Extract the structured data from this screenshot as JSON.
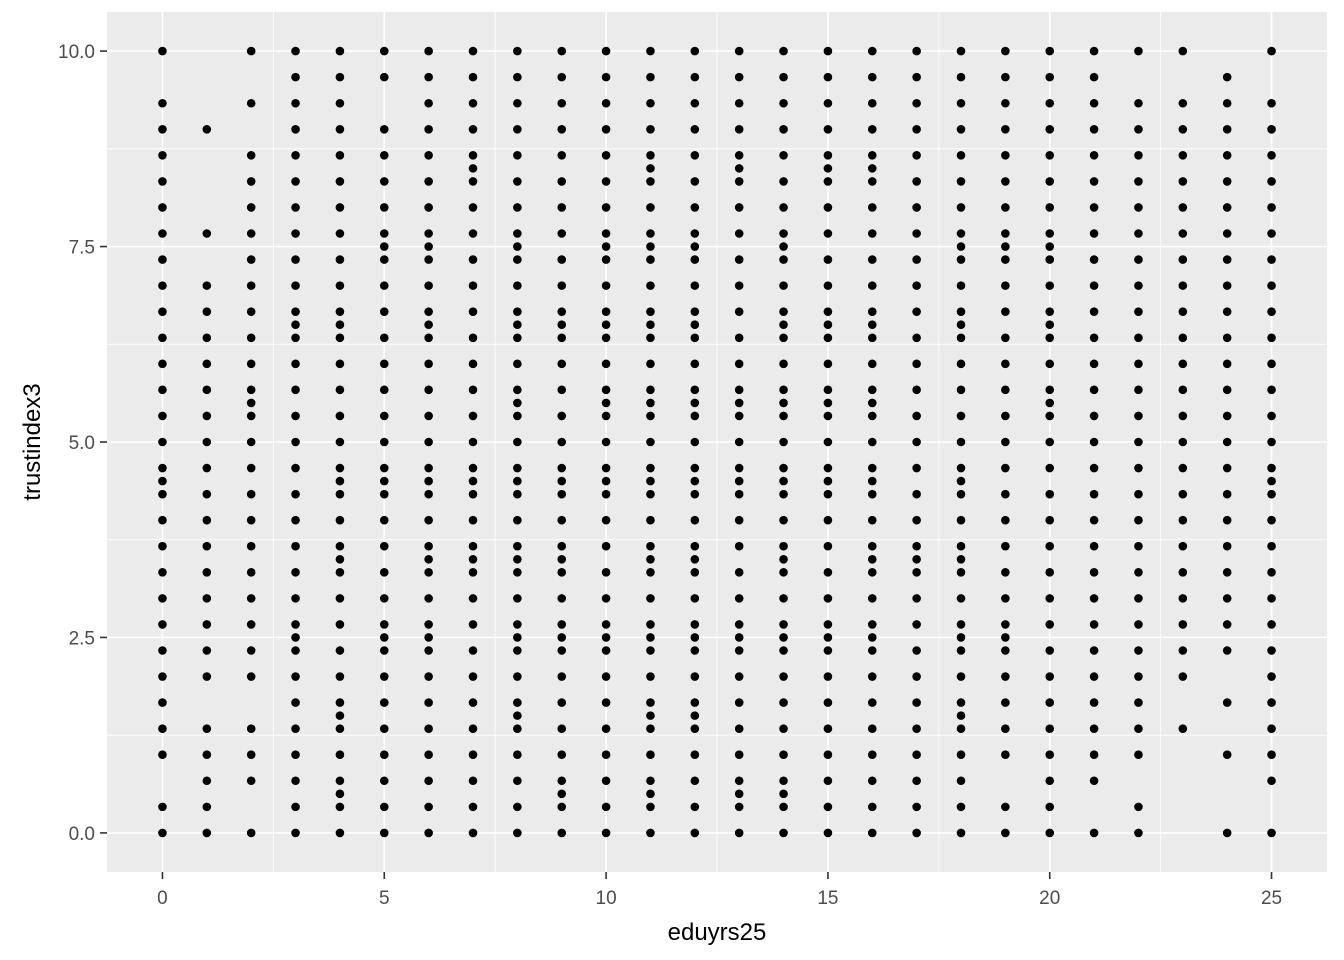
{
  "chart_data": {
    "type": "scatter",
    "title": "",
    "xlabel": "eduyrs25",
    "ylabel": "trustindex3",
    "xlim": [
      -1.25,
      26.25
    ],
    "ylim": [
      -0.5,
      10.5
    ],
    "x_ticks": [
      0,
      5,
      10,
      15,
      20,
      25
    ],
    "x_tick_labels": [
      "0",
      "5",
      "10",
      "15",
      "20",
      "25"
    ],
    "y_ticks": [
      0,
      2.5,
      5,
      7.5,
      10
    ],
    "y_tick_labels": [
      "0.0",
      "2.5",
      "5.0",
      "7.5",
      "10.0"
    ],
    "grid": true,
    "panel_background": "#ebebeb",
    "grid_color": "#ffffff",
    "point_color": "#000000",
    "legend": "none",
    "columns": [
      {
        "x": 0,
        "y": [
          0,
          0.333,
          1,
          1.333,
          1.667,
          2,
          2.333,
          2.667,
          3,
          3.333,
          3.667,
          4,
          4.333,
          4.5,
          4.667,
          5,
          5.333,
          5.667,
          6,
          6.333,
          6.667,
          7,
          7.333,
          7.667,
          8,
          8.333,
          8.667,
          9,
          9.333,
          10
        ]
      },
      {
        "x": 1,
        "y": [
          0,
          0.333,
          0.667,
          1,
          1.333,
          2,
          2.333,
          2.667,
          3,
          3.333,
          3.667,
          4,
          4.333,
          4.667,
          5,
          5.333,
          5.667,
          6,
          6.333,
          6.667,
          7,
          7.667,
          9
        ]
      },
      {
        "x": 2,
        "y": [
          0,
          0.667,
          1,
          1.333,
          2,
          2.333,
          2.667,
          3,
          3.333,
          3.667,
          4,
          4.333,
          4.667,
          5,
          5.333,
          5.5,
          5.667,
          6,
          6.333,
          6.667,
          7,
          7.333,
          7.667,
          8,
          8.333,
          8.667,
          9.333,
          10
        ]
      },
      {
        "x": 3,
        "y": [
          0,
          0.333,
          0.667,
          1,
          1.333,
          1.667,
          2,
          2.333,
          2.5,
          2.667,
          3,
          3.333,
          3.667,
          4,
          4.333,
          4.667,
          5,
          5.333,
          5.667,
          6,
          6.333,
          6.5,
          6.667,
          7,
          7.333,
          7.667,
          8,
          8.333,
          8.667,
          9,
          9.333,
          9.667,
          10
        ]
      },
      {
        "x": 4,
        "y": [
          0,
          0.333,
          0.5,
          0.667,
          1,
          1.333,
          1.5,
          1.667,
          2,
          2.333,
          2.667,
          3,
          3.333,
          3.5,
          3.667,
          4,
          4.333,
          4.5,
          4.667,
          5,
          5.333,
          5.667,
          6,
          6.333,
          6.5,
          6.667,
          7,
          7.333,
          7.667,
          8,
          8.333,
          8.667,
          9,
          9.333,
          9.667,
          10
        ]
      },
      {
        "x": 5,
        "y": [
          0,
          0.333,
          0.667,
          1,
          1.333,
          1.667,
          2,
          2.333,
          2.5,
          2.667,
          3,
          3.333,
          3.667,
          4,
          4.333,
          4.5,
          4.667,
          5,
          5.333,
          5.667,
          6,
          6.333,
          6.667,
          7,
          7.333,
          7.5,
          7.667,
          8,
          8.333,
          8.667,
          9,
          9.667,
          10
        ]
      },
      {
        "x": 6,
        "y": [
          0,
          0.333,
          0.667,
          1,
          1.333,
          1.667,
          2,
          2.333,
          2.5,
          2.667,
          3,
          3.333,
          3.5,
          3.667,
          4,
          4.333,
          4.5,
          4.667,
          5,
          5.333,
          5.667,
          6,
          6.333,
          6.5,
          6.667,
          7,
          7.333,
          7.5,
          7.667,
          8,
          8.333,
          8.667,
          9,
          9.333,
          9.667,
          10
        ]
      },
      {
        "x": 7,
        "y": [
          0,
          0.333,
          0.667,
          1,
          1.333,
          1.667,
          2,
          2.333,
          2.667,
          3,
          3.333,
          3.5,
          3.667,
          4,
          4.333,
          4.5,
          4.667,
          5,
          5.333,
          5.667,
          6,
          6.333,
          6.667,
          7,
          7.333,
          7.667,
          8,
          8.333,
          8.5,
          8.667,
          9,
          9.333,
          9.667,
          10
        ]
      },
      {
        "x": 8,
        "y": [
          0,
          0.333,
          0.667,
          1,
          1.333,
          1.5,
          1.667,
          2,
          2.333,
          2.5,
          2.667,
          3,
          3.333,
          3.5,
          3.667,
          4,
          4.333,
          4.5,
          4.667,
          5,
          5.333,
          5.5,
          5.667,
          6,
          6.333,
          6.5,
          6.667,
          7,
          7.333,
          7.5,
          7.667,
          8,
          8.333,
          8.667,
          9,
          9.333,
          9.667,
          10
        ]
      },
      {
        "x": 9,
        "y": [
          0,
          0.333,
          0.5,
          0.667,
          1,
          1.333,
          1.667,
          2,
          2.333,
          2.5,
          2.667,
          3,
          3.333,
          3.5,
          3.667,
          4,
          4.333,
          4.5,
          4.667,
          5,
          5.333,
          5.667,
          6,
          6.333,
          6.5,
          6.667,
          7,
          7.333,
          7.667,
          8,
          8.333,
          8.667,
          9,
          9.333,
          9.667,
          10
        ]
      },
      {
        "x": 10,
        "y": [
          0,
          0.333,
          0.667,
          1,
          1.333,
          1.667,
          2,
          2.333,
          2.5,
          2.667,
          3,
          3.333,
          3.667,
          4,
          4.333,
          4.5,
          4.667,
          5,
          5.333,
          5.5,
          5.667,
          6,
          6.333,
          6.5,
          6.667,
          7,
          7.333,
          7.5,
          7.667,
          8,
          8.333,
          8.667,
          9,
          9.333,
          9.667,
          10
        ]
      },
      {
        "x": 11,
        "y": [
          0,
          0.333,
          0.5,
          0.667,
          1,
          1.333,
          1.5,
          1.667,
          2,
          2.333,
          2.5,
          2.667,
          3,
          3.333,
          3.5,
          3.667,
          4,
          4.333,
          4.5,
          4.667,
          5,
          5.333,
          5.5,
          5.667,
          6,
          6.333,
          6.5,
          6.667,
          7,
          7.333,
          7.5,
          7.667,
          8,
          8.333,
          8.5,
          8.667,
          9,
          9.333,
          9.667,
          10
        ]
      },
      {
        "x": 12,
        "y": [
          0,
          0.333,
          0.667,
          1,
          1.333,
          1.5,
          1.667,
          2,
          2.333,
          2.5,
          2.667,
          3,
          3.333,
          3.5,
          3.667,
          4,
          4.333,
          4.5,
          4.667,
          5,
          5.333,
          5.5,
          5.667,
          6,
          6.333,
          6.5,
          6.667,
          7,
          7.333,
          7.5,
          7.667,
          8,
          8.333,
          8.667,
          9,
          9.333,
          9.667,
          10
        ]
      },
      {
        "x": 13,
        "y": [
          0,
          0.333,
          0.5,
          0.667,
          1,
          1.333,
          1.667,
          2,
          2.333,
          2.5,
          2.667,
          3,
          3.333,
          3.667,
          4,
          4.333,
          4.5,
          4.667,
          5,
          5.333,
          5.5,
          5.667,
          6,
          6.333,
          6.667,
          7,
          7.333,
          7.667,
          8,
          8.333,
          8.5,
          8.667,
          9,
          9.333,
          9.667,
          10
        ]
      },
      {
        "x": 14,
        "y": [
          0,
          0.333,
          0.5,
          0.667,
          1,
          1.333,
          1.667,
          2,
          2.333,
          2.5,
          2.667,
          3,
          3.333,
          3.5,
          3.667,
          4,
          4.333,
          4.5,
          4.667,
          5,
          5.333,
          5.5,
          5.667,
          6,
          6.333,
          6.5,
          6.667,
          7,
          7.333,
          7.5,
          7.667,
          8,
          8.333,
          8.667,
          9,
          9.333,
          9.667,
          10
        ]
      },
      {
        "x": 15,
        "y": [
          0,
          0.333,
          0.667,
          1,
          1.333,
          1.667,
          2,
          2.333,
          2.5,
          2.667,
          3,
          3.333,
          3.667,
          4,
          4.333,
          4.5,
          4.667,
          5,
          5.333,
          5.5,
          5.667,
          6,
          6.333,
          6.5,
          6.667,
          7,
          7.333,
          7.667,
          8,
          8.333,
          8.5,
          8.667,
          9,
          9.333,
          9.667,
          10
        ]
      },
      {
        "x": 16,
        "y": [
          0,
          0.333,
          0.667,
          1,
          1.333,
          1.667,
          2,
          2.333,
          2.5,
          2.667,
          3,
          3.333,
          3.5,
          3.667,
          4,
          4.333,
          4.5,
          4.667,
          5,
          5.333,
          5.5,
          5.667,
          6,
          6.333,
          6.5,
          6.667,
          7,
          7.333,
          7.667,
          8,
          8.333,
          8.5,
          8.667,
          9,
          9.333,
          9.667,
          10
        ]
      },
      {
        "x": 17,
        "y": [
          0,
          0.333,
          0.667,
          1,
          1.333,
          1.667,
          2,
          2.333,
          2.667,
          3,
          3.333,
          3.5,
          3.667,
          4,
          4.333,
          4.667,
          5,
          5.333,
          5.667,
          6,
          6.333,
          6.667,
          7,
          7.333,
          7.667,
          8,
          8.333,
          8.667,
          9,
          9.333,
          9.667,
          10
        ]
      },
      {
        "x": 18,
        "y": [
          0,
          0.333,
          0.667,
          1,
          1.333,
          1.5,
          1.667,
          2,
          2.333,
          2.5,
          2.667,
          3,
          3.333,
          3.5,
          3.667,
          4,
          4.333,
          4.5,
          4.667,
          5,
          5.333,
          5.667,
          6,
          6.333,
          6.5,
          6.667,
          7,
          7.333,
          7.5,
          7.667,
          8,
          8.333,
          8.667,
          9,
          9.333,
          9.667,
          10
        ]
      },
      {
        "x": 19,
        "y": [
          0,
          0.333,
          1,
          1.333,
          1.667,
          2,
          2.333,
          2.5,
          2.667,
          3,
          3.333,
          3.667,
          4,
          4.333,
          4.667,
          5,
          5.333,
          5.667,
          6,
          6.333,
          6.667,
          7,
          7.333,
          7.5,
          7.667,
          8,
          8.333,
          8.667,
          9,
          9.333,
          9.667,
          10
        ]
      },
      {
        "x": 20,
        "y": [
          0,
          0.333,
          0.667,
          1,
          1.333,
          1.667,
          2,
          2.333,
          2.667,
          3,
          3.333,
          3.667,
          4,
          4.333,
          4.667,
          5,
          5.333,
          5.5,
          5.667,
          6,
          6.333,
          6.5,
          6.667,
          7,
          7.333,
          7.5,
          7.667,
          8,
          8.333,
          8.667,
          9,
          9.333,
          9.667,
          10
        ]
      },
      {
        "x": 21,
        "y": [
          0,
          0.667,
          1,
          1.333,
          1.667,
          2,
          2.333,
          2.667,
          3,
          3.333,
          3.667,
          4,
          4.333,
          4.667,
          5,
          5.333,
          5.667,
          6,
          6.333,
          6.667,
          7,
          7.333,
          7.667,
          8,
          8.333,
          8.667,
          9,
          9.333,
          9.667,
          10
        ]
      },
      {
        "x": 22,
        "y": [
          0,
          0.333,
          1,
          1.333,
          1.667,
          2,
          2.333,
          2.667,
          3,
          3.333,
          3.667,
          4,
          4.333,
          4.667,
          5,
          5.333,
          5.667,
          6,
          6.333,
          6.667,
          7,
          7.333,
          7.667,
          8,
          8.333,
          8.667,
          9,
          9.333,
          10
        ]
      },
      {
        "x": 23,
        "y": [
          1.333,
          2,
          2.333,
          2.667,
          3,
          3.333,
          3.667,
          4,
          4.333,
          4.667,
          5,
          5.333,
          5.667,
          6,
          6.333,
          6.667,
          7,
          7.333,
          7.667,
          8,
          8.333,
          8.667,
          9,
          9.333,
          10
        ]
      },
      {
        "x": 24,
        "y": [
          0,
          1,
          1.667,
          2.333,
          2.667,
          3,
          3.333,
          3.667,
          4,
          4.333,
          4.667,
          5,
          5.333,
          5.667,
          6,
          6.333,
          6.667,
          7,
          7.333,
          7.667,
          8,
          8.333,
          8.667,
          9,
          9.333,
          9.667
        ]
      },
      {
        "x": 25,
        "y": [
          0,
          0.667,
          1,
          1.333,
          1.667,
          2,
          2.333,
          2.667,
          3,
          3.333,
          3.667,
          4,
          4.333,
          4.5,
          4.667,
          5,
          5.333,
          5.667,
          6,
          6.333,
          6.667,
          7,
          7.333,
          7.667,
          8,
          8.333,
          8.667,
          9,
          9.333,
          10
        ]
      }
    ]
  }
}
